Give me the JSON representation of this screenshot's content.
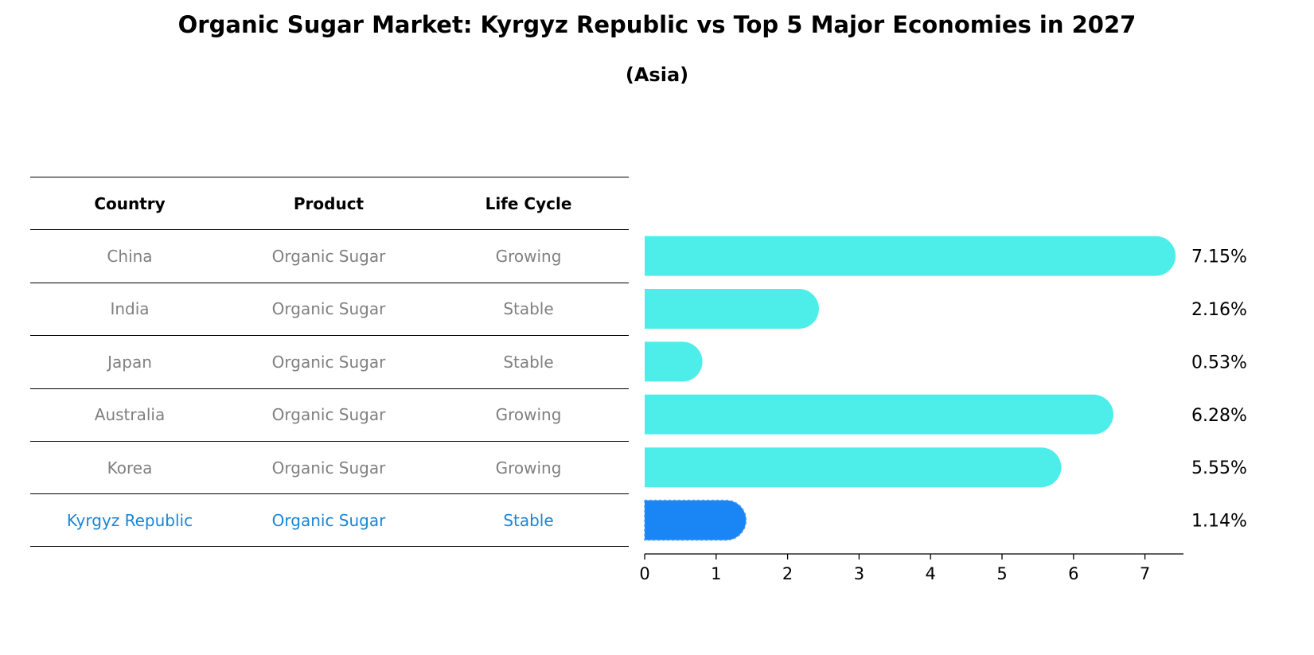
{
  "title": "Organic Sugar Market: Kyrgyz Republic vs Top 5 Major Economies in 2027",
  "subtitle": "(Asia)",
  "table": {
    "headers": [
      "Country",
      "Product",
      "Life Cycle"
    ],
    "rows": [
      {
        "country": "China",
        "product": "Organic Sugar",
        "life_cycle": "Growing"
      },
      {
        "country": "India",
        "product": "Organic Sugar",
        "life_cycle": "Stable"
      },
      {
        "country": "Japan",
        "product": "Organic Sugar",
        "life_cycle": "Stable"
      },
      {
        "country": "Australia",
        "product": "Organic Sugar",
        "life_cycle": "Growing"
      },
      {
        "country": "Korea",
        "product": "Organic Sugar",
        "life_cycle": "Growing"
      },
      {
        "country": "Kyrgyz Republic",
        "product": "Organic Sugar",
        "life_cycle": "Stable"
      }
    ]
  },
  "colors": {
    "bar": "#4deeea",
    "highlight_bar": "#1a85f5",
    "highlight_text": "#1a85d6",
    "muted_text": "#808080"
  },
  "chart_data": {
    "type": "bar",
    "orientation": "horizontal",
    "categories": [
      "China",
      "India",
      "Japan",
      "Australia",
      "Korea",
      "Kyrgyz Republic"
    ],
    "values": [
      7.15,
      2.16,
      0.53,
      6.28,
      5.55,
      1.14
    ],
    "value_labels": [
      "7.15%",
      "2.16%",
      "0.53%",
      "6.28%",
      "5.55%",
      "1.14%"
    ],
    "highlight": "Kyrgyz Republic",
    "xlim": [
      0,
      7.5
    ],
    "xticks": [
      0,
      1,
      2,
      3,
      4,
      5,
      6,
      7
    ],
    "grid": false
  }
}
